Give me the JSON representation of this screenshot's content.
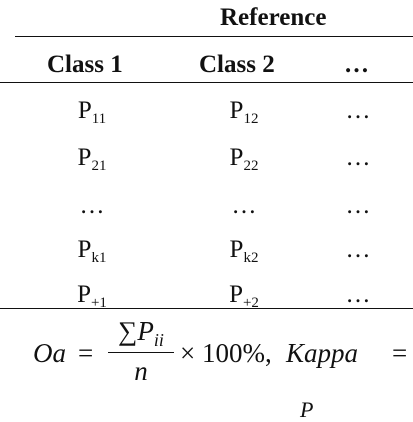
{
  "table": {
    "group_header": "Reference",
    "columns": [
      "Class 1",
      "Class 2",
      "…"
    ],
    "rows": [
      [
        {
          "base": "P",
          "sub": "11"
        },
        {
          "base": "P",
          "sub": "12"
        },
        {
          "base": "…",
          "sub": ""
        }
      ],
      [
        {
          "base": "P",
          "sub": "21"
        },
        {
          "base": "P",
          "sub": "22"
        },
        {
          "base": "…",
          "sub": ""
        }
      ],
      [
        {
          "base": "…",
          "sub": ""
        },
        {
          "base": "…",
          "sub": ""
        },
        {
          "base": "…",
          "sub": ""
        }
      ],
      [
        {
          "base": "P",
          "sub": "k1"
        },
        {
          "base": "P",
          "sub": "k2"
        },
        {
          "base": "…",
          "sub": ""
        }
      ],
      [
        {
          "base": "P",
          "sub": "+1"
        },
        {
          "base": "P",
          "sub": "+2"
        },
        {
          "base": "…",
          "sub": ""
        }
      ]
    ]
  },
  "formula": {
    "oa_label": "Oa",
    "equals": "=",
    "numerator_sum": "∑",
    "numerator_p": "P",
    "numerator_sub": "ii",
    "denominator": "n",
    "times_percent": "× 100%,",
    "kappa_label": "Kappa",
    "kappa_equals": "=",
    "cut_next_line": "P"
  }
}
